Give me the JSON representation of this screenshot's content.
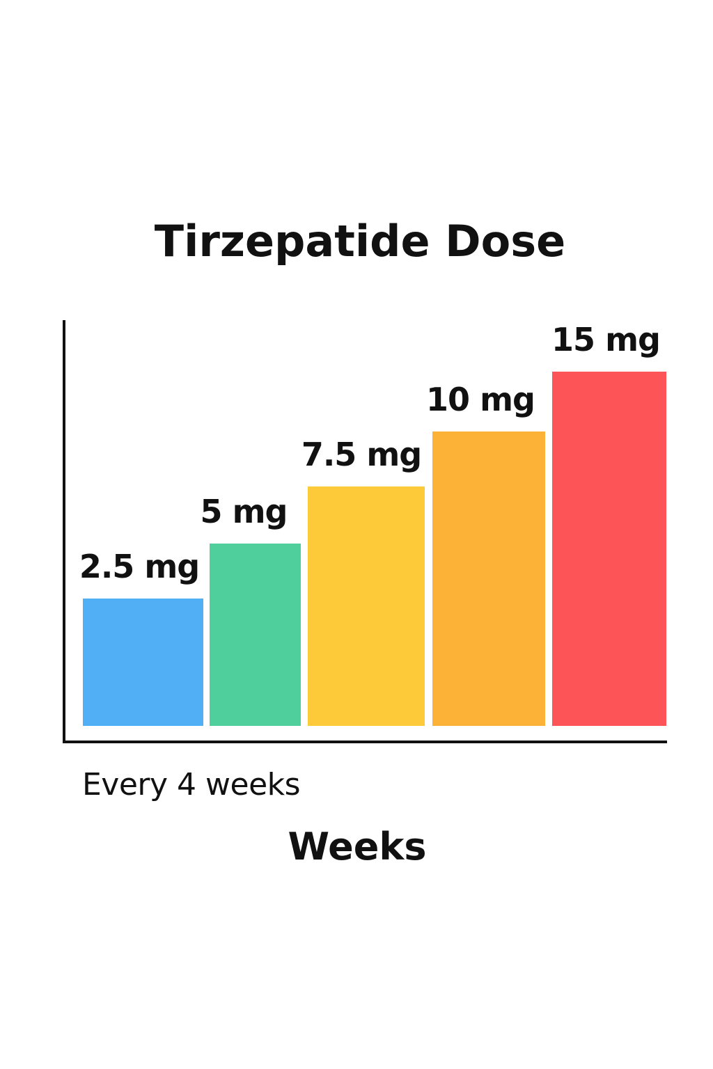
{
  "chart_data": {
    "type": "bar",
    "title": "Tirzepatide Dose",
    "xlabel": "Weeks",
    "ylabel": "",
    "annotation": "Every 4 weeks",
    "categories": [
      "2.5 mg",
      "5 mg",
      "7.5 mg",
      "10 mg",
      "15 mg"
    ],
    "values": [
      2.5,
      5,
      7.5,
      10,
      15
    ],
    "labels": [
      "2.5 mg",
      "5 mg",
      "7.5 mg",
      "10 mg",
      "15 mg"
    ],
    "colors": [
      "#51b0f5",
      "#4fcf9c",
      "#fdcb3a",
      "#fcb137",
      "#fd5458"
    ],
    "grid": false,
    "legend": "none"
  }
}
